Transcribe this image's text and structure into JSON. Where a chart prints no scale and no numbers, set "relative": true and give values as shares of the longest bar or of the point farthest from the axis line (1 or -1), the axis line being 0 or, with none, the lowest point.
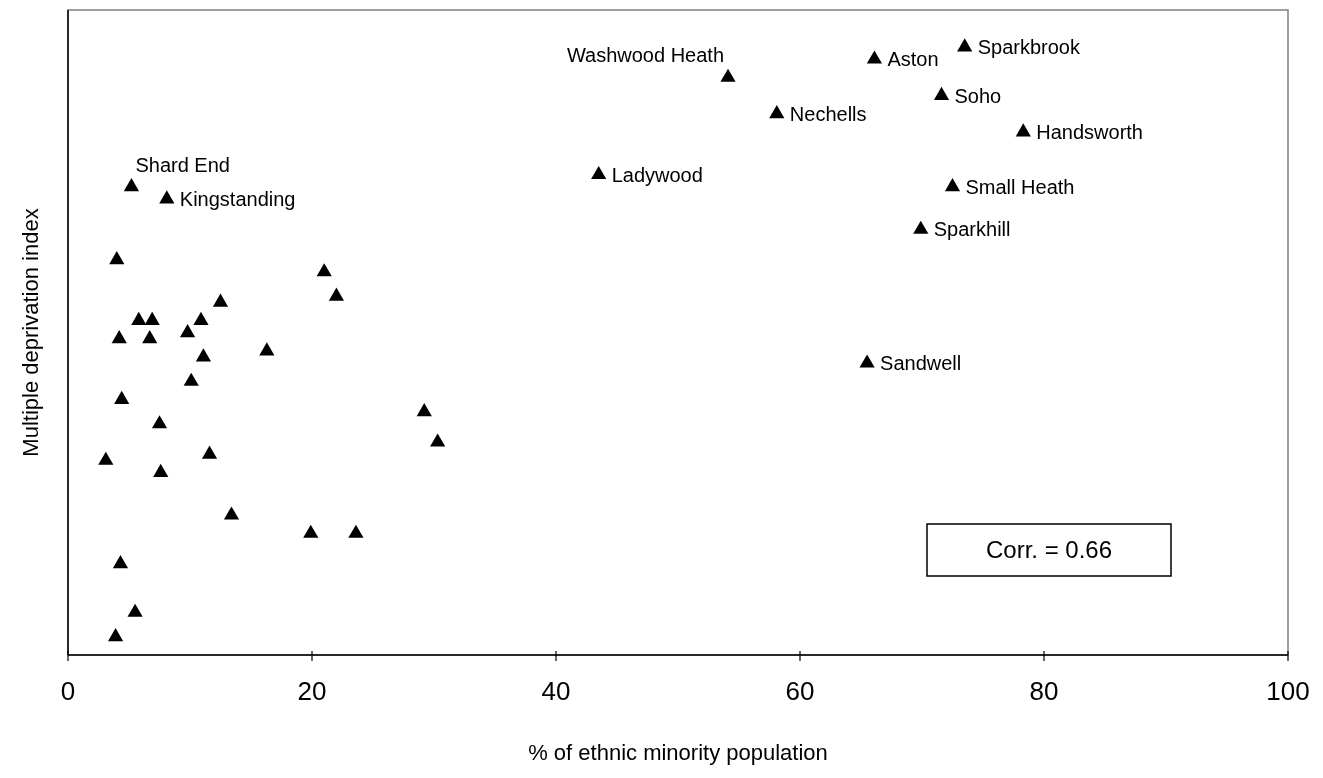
{
  "chart_data": {
    "type": "scatter",
    "xlabel": "% of ethnic minority population",
    "ylabel": "Multiple deprivation index",
    "xlim": [
      0,
      100
    ],
    "xticks": [
      0,
      20,
      40,
      60,
      80,
      100
    ],
    "relative": true,
    "tick_labels": "x",
    "marker": "triangle",
    "color": "#000000",
    "x": [
      54.1,
      66.1,
      73.5,
      71.6,
      58.1,
      78.3,
      43.5,
      72.5,
      69.9,
      65.5,
      5.2,
      8.1,
      4.0,
      21.0,
      22.0,
      12.5,
      5.8,
      6.9,
      10.9,
      9.8,
      4.2,
      6.7,
      16.3,
      11.1,
      10.1,
      4.4,
      29.2,
      7.5,
      30.3,
      3.1,
      11.6,
      7.6,
      13.4,
      19.9,
      23.6,
      4.3,
      5.5,
      3.9
    ],
    "values": [
      0.95,
      0.98,
      1,
      0.92,
      0.89,
      0.86,
      0.79,
      0.77,
      0.7,
      0.48,
      0.77,
      0.75,
      0.65,
      0.63,
      0.59,
      0.58,
      0.55,
      0.55,
      0.55,
      0.53,
      0.52,
      0.52,
      0.5,
      0.49,
      0.45,
      0.42,
      0.4,
      0.38,
      0.35,
      0.32,
      0.33,
      0.3,
      0.23,
      0.2,
      0.2,
      0.15,
      0.07,
      0.03
    ],
    "annotations": [
      {
        "text": "Washwood Heath",
        "x": 54.1,
        "y": 0.95
      },
      {
        "text": "Aston",
        "x": 66.1,
        "y": 0.98
      },
      {
        "text": "Sparkbrook",
        "x": 73.5,
        "y": 1
      },
      {
        "text": "Soho",
        "x": 71.6,
        "y": 0.92
      },
      {
        "text": "Nechells",
        "x": 58.1,
        "y": 0.89
      },
      {
        "text": "Handsworth",
        "x": 78.3,
        "y": 0.86
      },
      {
        "text": "Ladywood",
        "x": 43.5,
        "y": 0.79
      },
      {
        "text": "Small Heath",
        "x": 72.5,
        "y": 0.77
      },
      {
        "text": "Sparkhill",
        "x": 69.9,
        "y": 0.7
      },
      {
        "text": "Sandwell",
        "x": 65.5,
        "y": 0.48
      },
      {
        "text": "Shard End",
        "x": 5.2,
        "y": 0.77
      },
      {
        "text": "Kingstanding",
        "x": 8.1,
        "y": 0.75
      },
      "Corr. = 0.66"
    ]
  }
}
